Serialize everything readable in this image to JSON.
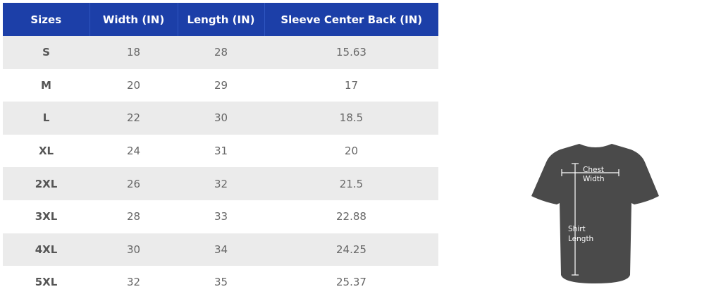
{
  "table": {
    "header": [
      "Sizes",
      "Width (IN)",
      "Length (IN)",
      "Sleeve Center Back (IN)"
    ],
    "rows": [
      [
        "S",
        "18",
        "28",
        "15.63"
      ],
      [
        "M",
        "20",
        "29",
        "17"
      ],
      [
        "L",
        "22",
        "30",
        "18.5"
      ],
      [
        "XL",
        "24",
        "31",
        "20"
      ],
      [
        "2XL",
        "26",
        "32",
        "21.5"
      ],
      [
        "3XL",
        "28",
        "33",
        "22.88"
      ],
      [
        "4XL",
        "30",
        "34",
        "24.25"
      ],
      [
        "5XL",
        "32",
        "35",
        "25.37"
      ]
    ]
  },
  "diagram": {
    "chest_label": [
      "Chest",
      "Width"
    ],
    "length_label": [
      "Shirt",
      "Length"
    ]
  }
}
